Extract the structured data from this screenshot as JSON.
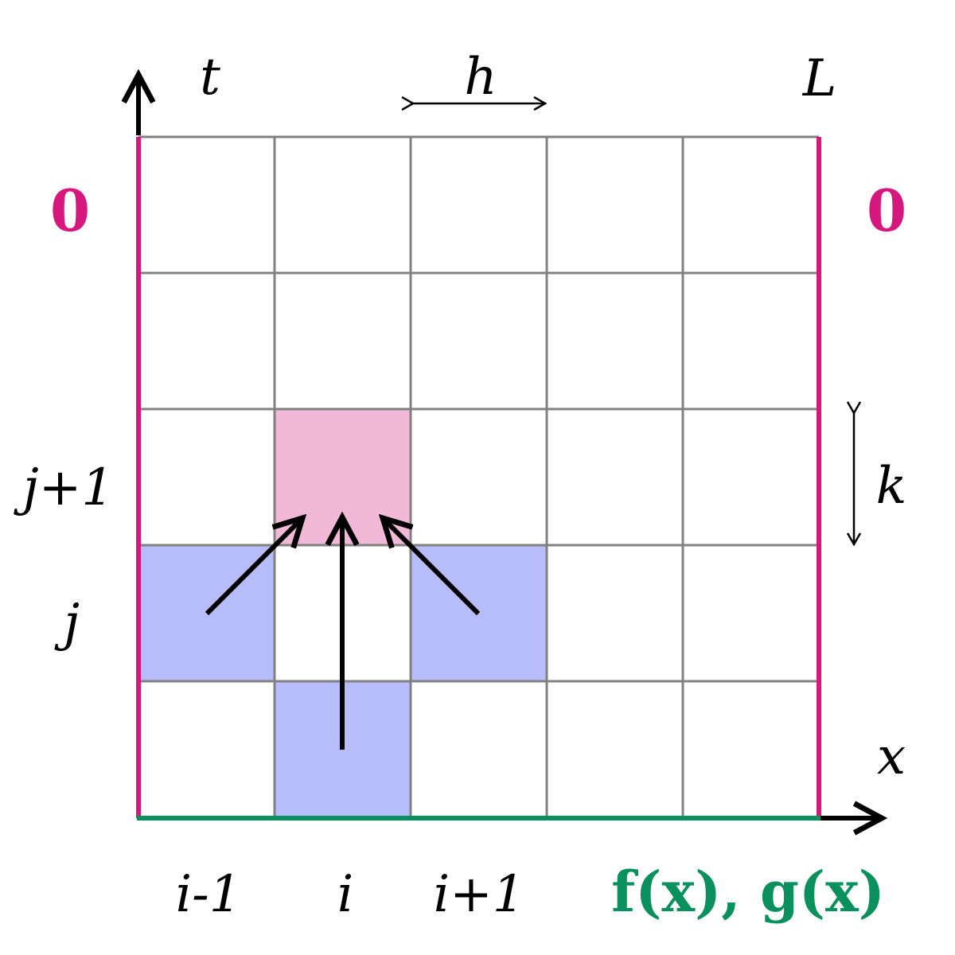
{
  "grid": {
    "columns": 5,
    "rows": 5
  },
  "labels": {
    "t_axis": "t",
    "x_axis": "x",
    "h_spacing": "h",
    "k_spacing": "k",
    "length": "L",
    "left_boundary": "0",
    "right_boundary": "0",
    "initial_condition": "f(x), g(x)",
    "row_j_plus_1": "j+1",
    "row_j": "j",
    "col_i_minus_1": "i-1",
    "col_i": "i",
    "col_i_plus_1": "i+1"
  },
  "highlight": {
    "target_cell": {
      "col": 1,
      "row": 2
    },
    "source_cells": [
      {
        "col": 0,
        "row": 3
      },
      {
        "col": 2,
        "row": 3
      },
      {
        "col": 1,
        "row": 4
      }
    ]
  },
  "colors": {
    "grid_line": "#808080",
    "boundary": "#d6177e",
    "initial": "#0a8f5e",
    "target_fill": "#f2b8d8",
    "source_fill": "#b6bdfa",
    "arrow": "#000000"
  }
}
